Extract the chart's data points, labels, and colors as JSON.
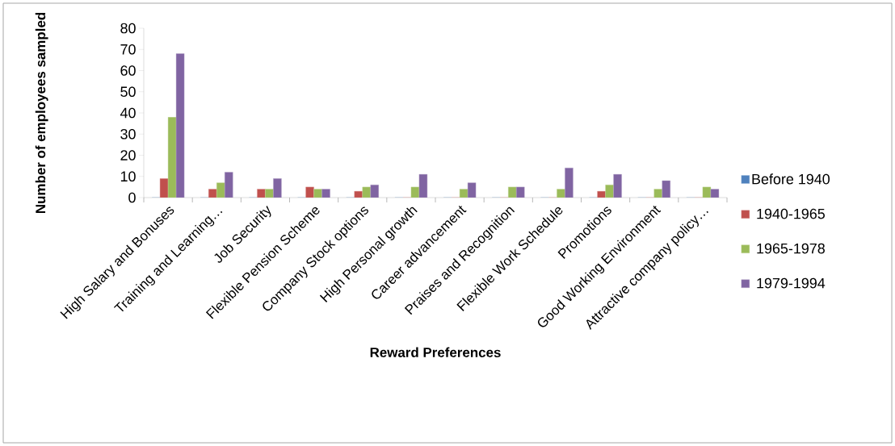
{
  "chart_data": {
    "type": "bar",
    "xlabel": "Reward Preferences",
    "ylabel": "Number of employees sampled",
    "categories": [
      "High Salary and Bonuses",
      "Training and Learning…",
      "Job Security",
      "Flexible Pension Scheme",
      "Company Stock options",
      "High Personal growth",
      "Career advancement",
      "Praises and Recognition",
      "Flexible Work Schedule",
      "Promotions",
      "Good Working Environment",
      "Attractive company policy…"
    ],
    "series": [
      {
        "name": "Before 1940",
        "color": "#4f81bd",
        "values": [
          0,
          0,
          0,
          0,
          0,
          0,
          0,
          0,
          0,
          0,
          0,
          0
        ]
      },
      {
        "name": "1940-1965",
        "color": "#c0504d",
        "values": [
          9,
          4,
          4,
          5,
          3,
          0,
          0,
          0,
          0,
          3,
          0,
          0
        ]
      },
      {
        "name": "1965-1978",
        "color": "#9bbb59",
        "values": [
          38,
          7,
          4,
          4,
          5,
          5,
          4,
          5,
          4,
          6,
          4,
          5
        ]
      },
      {
        "name": "1979-1994",
        "color": "#8064a2",
        "values": [
          68,
          12,
          9,
          4,
          6,
          11,
          7,
          5,
          14,
          11,
          8,
          4
        ]
      }
    ],
    "ylim": [
      0,
      80
    ],
    "yticks": [
      0,
      10,
      20,
      30,
      40,
      50,
      60,
      70,
      80
    ],
    "grid": false,
    "legend": "right"
  }
}
